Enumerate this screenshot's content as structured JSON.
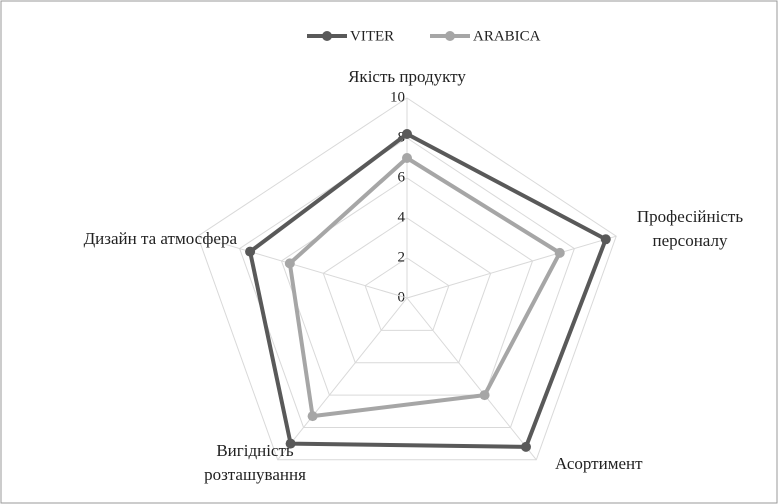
{
  "chart_data": {
    "type": "radar",
    "categories": [
      "Якість продукту",
      "Професійність персоналу",
      "Асортимент",
      "Вигідність розташування",
      "Дизайн та атмосфера"
    ],
    "series": [
      {
        "name": "VITER",
        "color": "#595959",
        "values": [
          8.2,
          9.5,
          9.2,
          9.0,
          7.5
        ]
      },
      {
        "name": "ARABICA",
        "color": "#a6a6a6",
        "values": [
          7.0,
          7.3,
          6.0,
          7.3,
          5.6
        ]
      }
    ],
    "rlim": [
      0,
      10
    ],
    "rticks": [
      0,
      2,
      4,
      6,
      8,
      10
    ],
    "grid": true,
    "legend": "top"
  }
}
